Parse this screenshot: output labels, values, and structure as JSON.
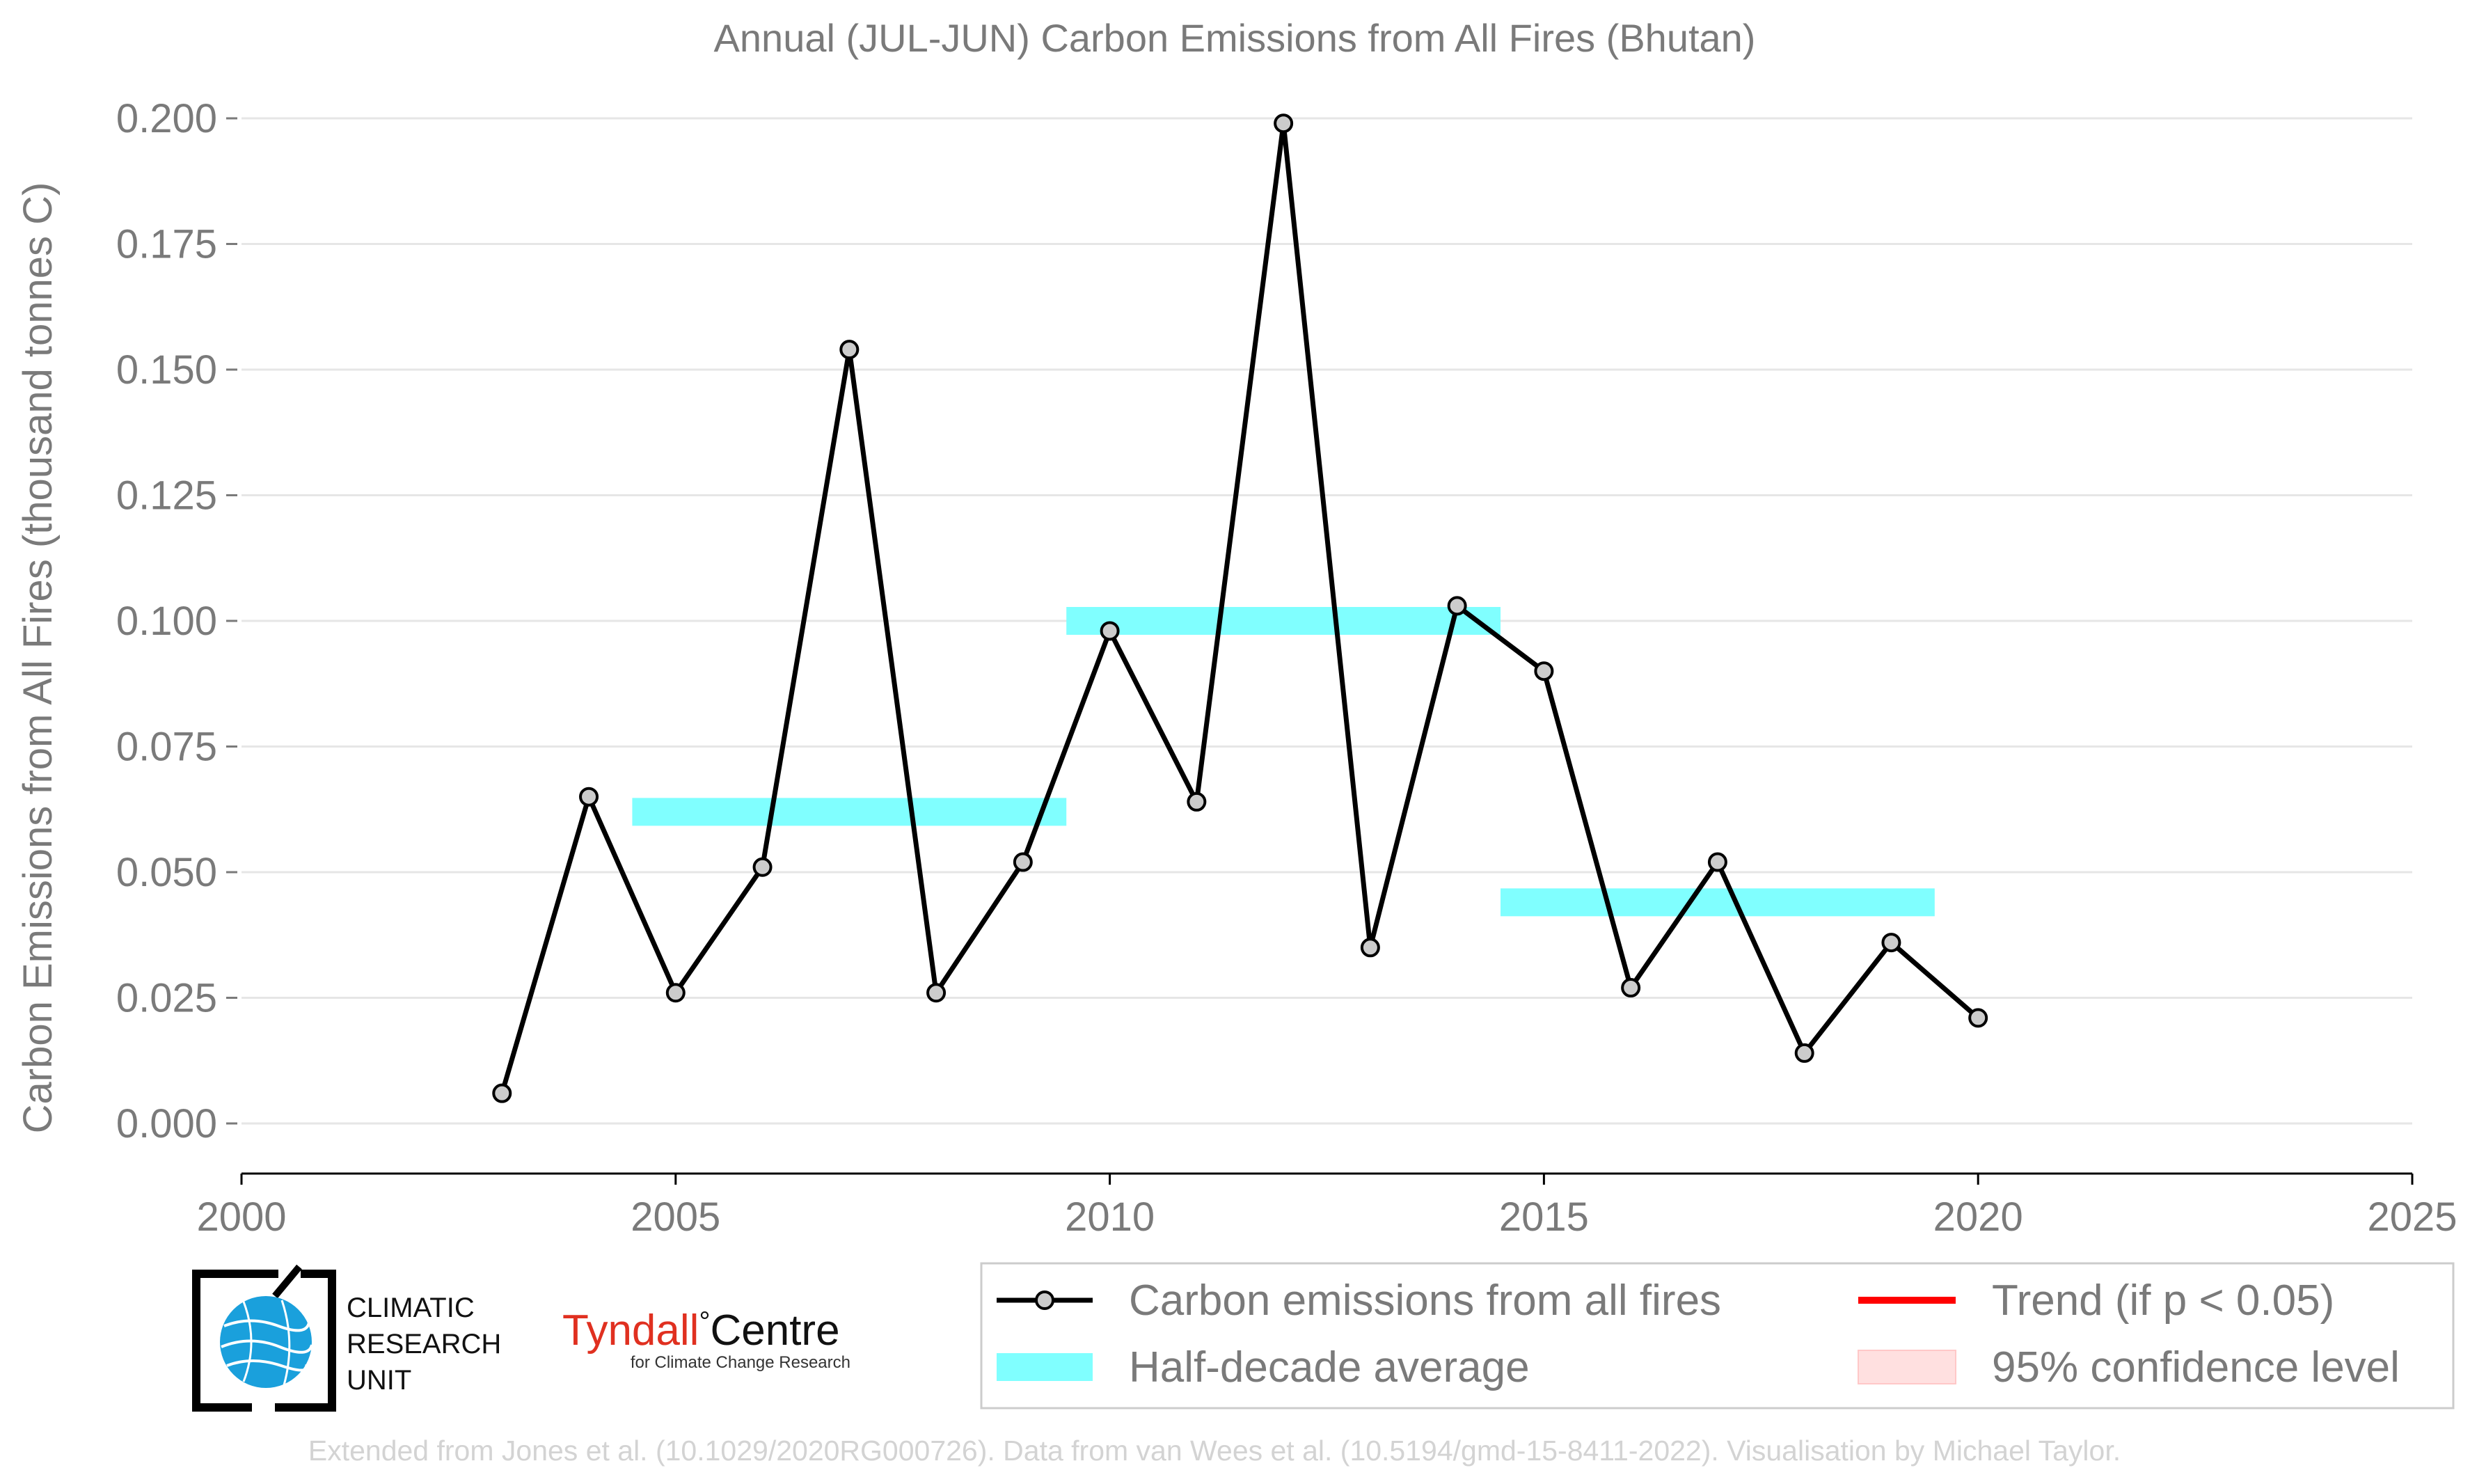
{
  "chart_data": {
    "type": "line",
    "title": "Annual (JUL-JUN) Carbon Emissions from All Fires (Bhutan)",
    "ylabel": "Carbon Emissions from All Fires (thousand tonnes C)",
    "xlabel": "",
    "xlim": [
      2000,
      2025
    ],
    "ylim": [
      -0.005,
      0.2
    ],
    "x_ticks": [
      "2000",
      "2005",
      "2010",
      "2015",
      "2020",
      "2025"
    ],
    "y_ticks": [
      "0.000",
      "0.025",
      "0.050",
      "0.075",
      "0.100",
      "0.125",
      "0.150",
      "0.175",
      "0.200"
    ],
    "grid": "horizontal",
    "series": [
      {
        "name": "Carbon emissions from all fires",
        "color": "#000000",
        "marker_color": "#cccccc",
        "x": [
          2003,
          2004,
          2005,
          2006,
          2007,
          2008,
          2009,
          2010,
          2011,
          2012,
          2013,
          2014,
          2015,
          2016,
          2017,
          2018,
          2019,
          2020
        ],
        "y": [
          0.006,
          0.065,
          0.026,
          0.051,
          0.154,
          0.026,
          0.052,
          0.098,
          0.064,
          0.199,
          0.035,
          0.103,
          0.09,
          0.027,
          0.052,
          0.014,
          0.036,
          0.021
        ]
      }
    ],
    "half_decade_average": {
      "name": "Half-decade average",
      "color": "#80ffff",
      "segments": [
        {
          "x0": 2004.5,
          "x1": 2009.5,
          "y": 0.062
        },
        {
          "x0": 2009.5,
          "x1": 2014.5,
          "y": 0.1
        },
        {
          "x0": 2014.5,
          "x1": 2019.5,
          "y": 0.044
        }
      ]
    },
    "legend": {
      "placement": "bottom-right",
      "entries": [
        {
          "label": "Carbon emissions from all fires",
          "kind": "line-marker",
          "color": "#000000"
        },
        {
          "label": "Trend (if p < 0.05)",
          "kind": "line",
          "color": "#ff0000"
        },
        {
          "label": "Half-decade average",
          "kind": "band",
          "color": "#80ffff"
        },
        {
          "label": "95% confidence level",
          "kind": "patch",
          "color": "#ffe0e0"
        }
      ]
    }
  },
  "logos": {
    "cru": {
      "line1": "CLIMATIC",
      "line2": "RESEARCH",
      "line3": "UNIT",
      "icon": "globe-icon"
    },
    "tyndall": {
      "brand": "Tyndall",
      "degree": "°",
      "centre": "Centre",
      "tagline": "for Climate Change Research",
      "brand_color": "#e03020"
    }
  },
  "credit": "Extended from Jones et al. (10.1029/2020RG000726). Data from van Wees et al. (10.5194/gmd-15-8411-2022). Visualisation by Michael Taylor."
}
